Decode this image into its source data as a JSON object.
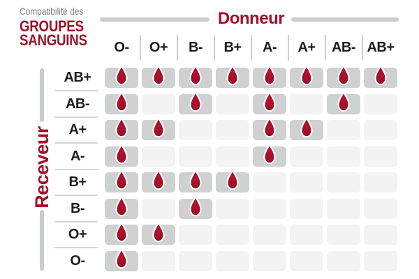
{
  "title": {
    "prefix": "Compatibilité des",
    "line1": "GROUPES",
    "line2": "SANGUINS"
  },
  "axes": {
    "donor_label": "Donneur",
    "receiver_label": "Receveur"
  },
  "colors": {
    "accent_red": "#9E1228",
    "drop_center": "#B5122E",
    "drop_edge": "#8A0E23",
    "cell_active": "#CED1D0",
    "cell_inactive": "#F2F3F2",
    "line_gray": "#C9CDCC",
    "text_dark": "#1D1D1B",
    "subtitle_gray": "#7D7F7F"
  },
  "chart_data": {
    "type": "heatmap",
    "title": "Compatibilité des groupes sanguins",
    "x_axis_title": "Donneur",
    "y_axis_title": "Receveur",
    "columns": [
      "O-",
      "O+",
      "B-",
      "B+",
      "A-",
      "A+",
      "AB-",
      "AB+"
    ],
    "rows": [
      "AB+",
      "AB-",
      "A+",
      "A-",
      "B+",
      "B-",
      "O+",
      "O-"
    ],
    "cell_true_marker": "blood-drop-icon",
    "legend": "1 = compatible (blood drop shown on dark cell), 0 = not compatible (empty light cell)",
    "matrix": [
      [
        1,
        1,
        1,
        1,
        1,
        1,
        1,
        1
      ],
      [
        1,
        0,
        1,
        0,
        1,
        0,
        1,
        0
      ],
      [
        1,
        1,
        0,
        0,
        1,
        1,
        0,
        0
      ],
      [
        1,
        0,
        0,
        0,
        1,
        0,
        0,
        0
      ],
      [
        1,
        1,
        1,
        1,
        0,
        0,
        0,
        0
      ],
      [
        1,
        0,
        1,
        0,
        0,
        0,
        0,
        0
      ],
      [
        1,
        1,
        0,
        0,
        0,
        0,
        0,
        0
      ],
      [
        1,
        0,
        0,
        0,
        0,
        0,
        0,
        0
      ]
    ]
  }
}
